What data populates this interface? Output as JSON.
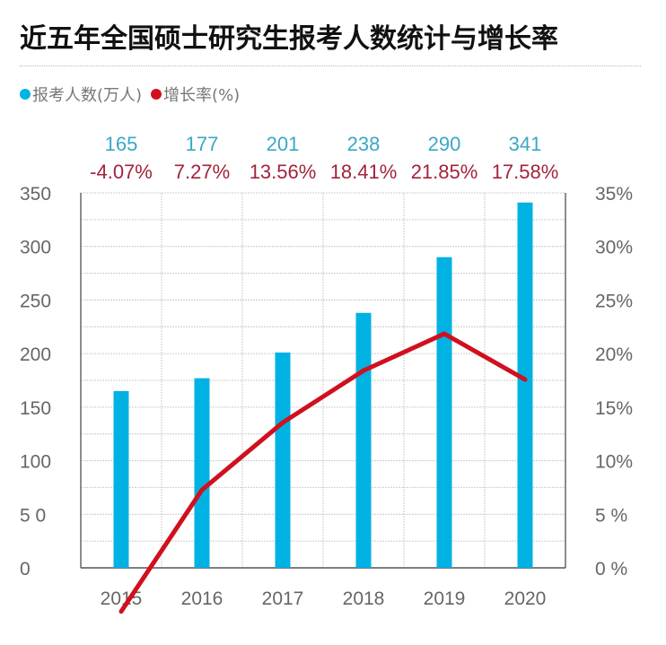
{
  "chart_data": {
    "type": "bar+line",
    "title": "近五年全国硕士研究生报考人数统计与增长率",
    "categories": [
      "2015",
      "2016",
      "2017",
      "2018",
      "2019",
      "2020"
    ],
    "series": [
      {
        "name": "报考人数(万人)",
        "type": "bar",
        "axis": "left",
        "values": [
          165,
          177,
          201,
          238,
          290,
          341
        ],
        "labels": [
          "165",
          "177",
          "201",
          "238",
          "290",
          "341"
        ],
        "color": "#00b2e3"
      },
      {
        "name": "增长率(%)",
        "type": "line",
        "axis": "right",
        "values": [
          -4.07,
          7.27,
          13.56,
          18.41,
          21.85,
          17.58
        ],
        "labels": [
          "-4.07%",
          "7.27%",
          "13.56%",
          "18.41%",
          "21.85%",
          "17.58%"
        ],
        "color": "#d0101e"
      }
    ],
    "y_left": {
      "range": [
        0,
        350
      ],
      "ticks": [
        0,
        50,
        100,
        150,
        200,
        250,
        300,
        350
      ],
      "tick_labels": [
        "0",
        "5 0",
        "100",
        "150",
        "200",
        "250",
        "300",
        "350"
      ]
    },
    "y_right": {
      "range": [
        0,
        35
      ],
      "ticks": [
        0,
        5,
        10,
        15,
        20,
        25,
        30,
        35
      ],
      "tick_labels": [
        "0 %",
        "5 %",
        "10%",
        "15%",
        "20%",
        "25%",
        "30%",
        "35%"
      ]
    },
    "grid": true,
    "legend_placement": "top-left",
    "colors": {
      "bar_label": "#3aa8c8",
      "rate_label": "#a3233b"
    }
  }
}
